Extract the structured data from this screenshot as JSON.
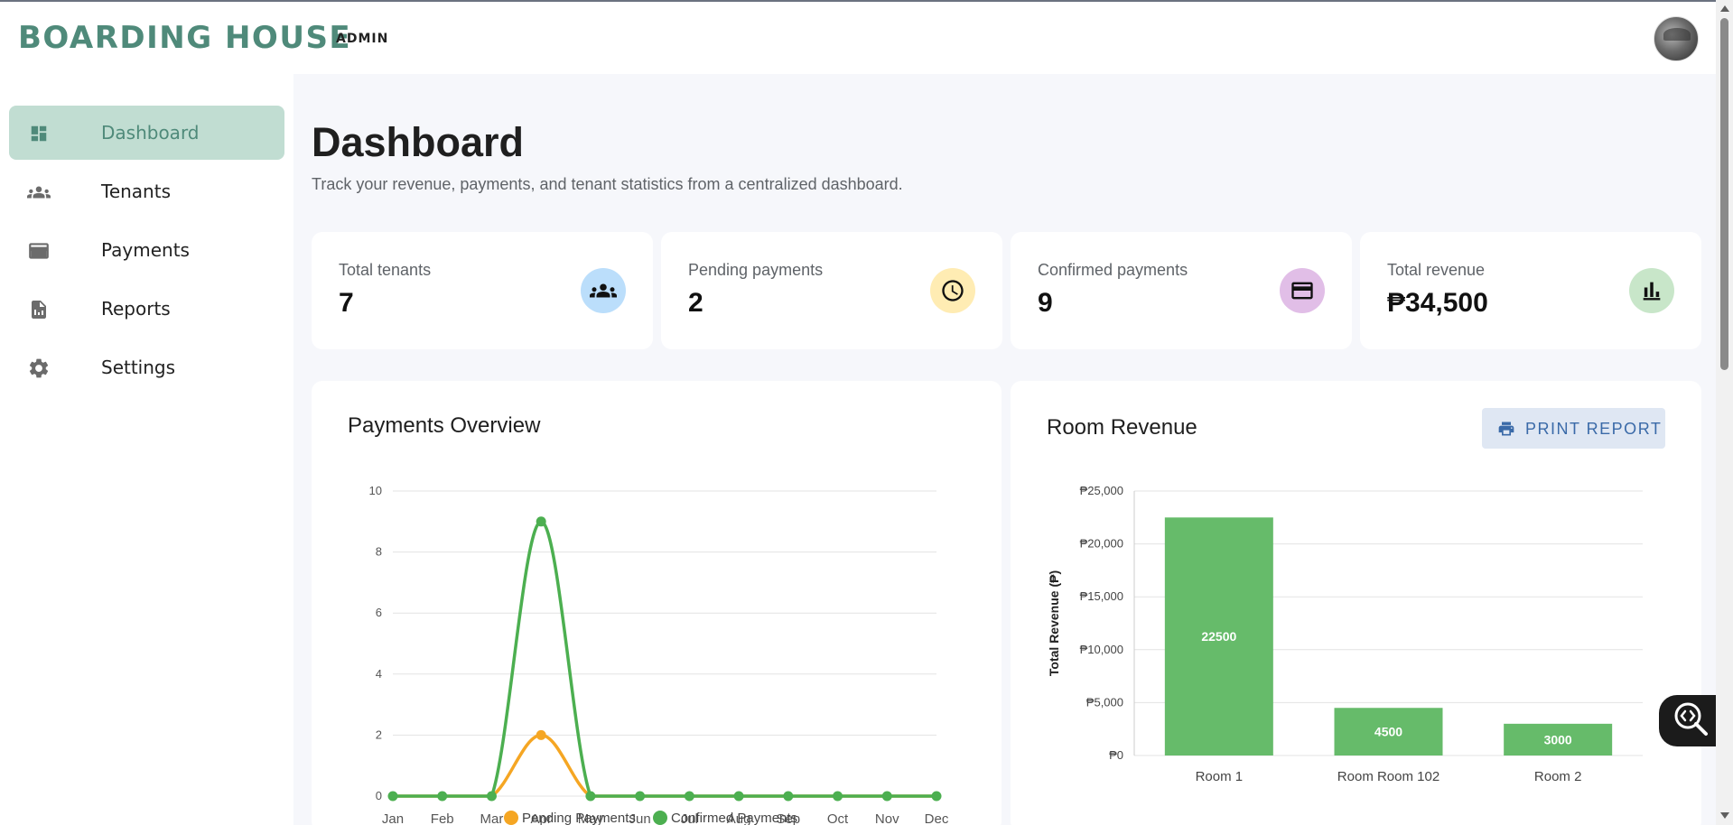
{
  "header": {
    "brand": "BOARDING HOUSE",
    "role": "ADMIN"
  },
  "sidebar": {
    "items": [
      {
        "label": "Dashboard",
        "icon": "dashboard-icon",
        "active": true
      },
      {
        "label": "Tenants",
        "icon": "group-icon"
      },
      {
        "label": "Payments",
        "icon": "credit-card-icon"
      },
      {
        "label": "Reports",
        "icon": "report-icon"
      },
      {
        "label": "Settings",
        "icon": "gear-icon"
      }
    ]
  },
  "page": {
    "title": "Dashboard",
    "subtitle": "Track your revenue, payments, and tenant statistics from a centralized dashboard."
  },
  "stats": [
    {
      "label": "Total tenants",
      "value": "7",
      "icon": "group-icon",
      "color": "#bbdefb"
    },
    {
      "label": "Pending payments",
      "value": "2",
      "icon": "clock-icon",
      "color": "#ffecb3"
    },
    {
      "label": "Confirmed payments",
      "value": "9",
      "icon": "credit-card-icon",
      "color": "#e1bee7"
    },
    {
      "label": "Total revenue",
      "value": "₱34,500",
      "icon": "bar-chart-icon",
      "color": "#c8e6c9"
    }
  ],
  "panels": {
    "payments_title": "Payments Overview",
    "revenue_title": "Room Revenue",
    "print_label": "PRINT REPORT"
  },
  "colors": {
    "accent": "#4f8a7a",
    "pending": "#f5a623",
    "confirmed": "#4caf50",
    "bar": "#66bb6a"
  },
  "chart_data": [
    {
      "type": "line",
      "title": "Payments Overview",
      "categories": [
        "Jan",
        "Feb",
        "Mar",
        "Apr",
        "May",
        "Jun",
        "Jul",
        "Aug",
        "Sep",
        "Oct",
        "Nov",
        "Dec"
      ],
      "series": [
        {
          "name": "Pending Payments",
          "color": "#f5a623",
          "values": [
            0,
            0,
            0,
            2,
            0,
            0,
            0,
            0,
            0,
            0,
            0,
            0
          ]
        },
        {
          "name": "Confirmed Payments",
          "color": "#4caf50",
          "values": [
            0,
            0,
            0,
            9,
            0,
            0,
            0,
            0,
            0,
            0,
            0,
            0
          ]
        }
      ],
      "ylim": [
        0,
        10
      ],
      "yticks": [
        0,
        2,
        4,
        6,
        8,
        10
      ],
      "grid": true,
      "legend": "bottom"
    },
    {
      "type": "bar",
      "title": "Room Revenue",
      "categories": [
        "Room 1",
        "Room Room 102",
        "Room 2"
      ],
      "values": [
        22500,
        4500,
        3000
      ],
      "data_labels": [
        "22500",
        "4500",
        "3000"
      ],
      "ylabel": "Total Revenue (₱)",
      "ylim": [
        0,
        25000
      ],
      "yticks": [
        0,
        5000,
        10000,
        15000,
        20000,
        25000
      ],
      "ytick_labels": [
        "₱0",
        "₱5,000",
        "₱10,000",
        "₱15,000",
        "₱20,000",
        "₱25,000"
      ],
      "grid": true
    }
  ]
}
